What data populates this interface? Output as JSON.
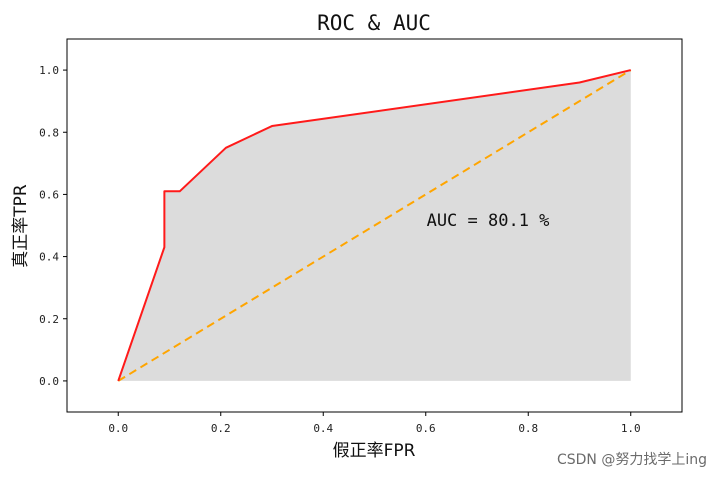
{
  "chart_data": {
    "type": "line",
    "title": "ROC & AUC",
    "xlabel": "假正率FPR",
    "ylabel": "真正率TPR",
    "xlim": [
      -0.1,
      1.1
    ],
    "ylim": [
      -0.1,
      1.1
    ],
    "xticks": [
      "0.0",
      "0.2",
      "0.4",
      "0.6",
      "0.8",
      "1.0"
    ],
    "yticks": [
      "0.0",
      "0.2",
      "0.4",
      "0.6",
      "0.8",
      "1.0"
    ],
    "grid": false,
    "annotation": "AUC = 80.1 %",
    "series": [
      {
        "style": "solid",
        "color": "#ff1a1a",
        "fill": "#dcdcdc",
        "x": [
          0.0,
          0.09,
          0.09,
          0.12,
          0.21,
          0.3,
          0.9,
          1.0
        ],
        "y": [
          0.0,
          0.43,
          0.61,
          0.61,
          0.75,
          0.82,
          0.96,
          1.0
        ]
      },
      {
        "style": "dashed",
        "color": "#ffa500",
        "x": [
          0.0,
          1.0
        ],
        "y": [
          0.0,
          1.0
        ]
      }
    ]
  },
  "watermark": "CSDN @努力找学上ing"
}
